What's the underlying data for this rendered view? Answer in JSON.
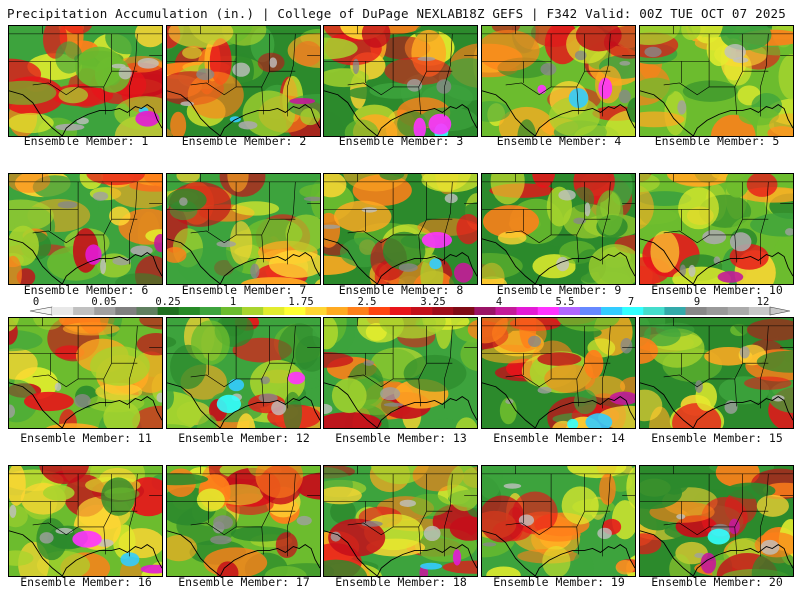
{
  "header": {
    "title_left": "Precipitation Accumulation (in.) | College of DuPage NEXLAB",
    "title_right": "18Z GEFS | F342 Valid: 00Z TUE OCT 07 2025"
  },
  "colorbar": {
    "tick_labels": [
      "0",
      "0.05",
      "0.25",
      "1",
      "1.75",
      "2.5",
      "3.25",
      "4",
      "5.5",
      "7",
      "9",
      "12"
    ],
    "colors": [
      "#e8e8e8",
      "#c0c0c0",
      "#a0a0a0",
      "#7f7f7f",
      "#5f7f5f",
      "#1f6f1f",
      "#268a26",
      "#3da33d",
      "#6cbc2e",
      "#a8d42e",
      "#e2ec2e",
      "#ffff33",
      "#ffd633",
      "#ffaa22",
      "#ff7f1a",
      "#ff4411",
      "#e8141a",
      "#c40f1a",
      "#a00d1a",
      "#7f0b16",
      "#9a1466",
      "#c41a99",
      "#e31ad6",
      "#ff33ff",
      "#b166ff",
      "#6688ff",
      "#33ccff",
      "#33ffff",
      "#44ddcc",
      "#33aaaa",
      "#888888",
      "#999999",
      "#aaaaaa",
      "#c8c8c8"
    ]
  },
  "panels": [
    {
      "label": "Ensemble Member: 1"
    },
    {
      "label": "Ensemble Member: 2"
    },
    {
      "label": "Ensemble Member: 3"
    },
    {
      "label": "Ensemble Member: 4"
    },
    {
      "label": "Ensemble Member: 5"
    },
    {
      "label": "Ensemble Member: 6"
    },
    {
      "label": "Ensemble Member: 7"
    },
    {
      "label": "Ensemble Member: 8"
    },
    {
      "label": "Ensemble Member: 9"
    },
    {
      "label": "Ensemble Member: 10"
    },
    {
      "label": "Ensemble Member: 11"
    },
    {
      "label": "Ensemble Member: 12"
    },
    {
      "label": "Ensemble Member: 13"
    },
    {
      "label": "Ensemble Member: 14"
    },
    {
      "label": "Ensemble Member: 15"
    },
    {
      "label": "Ensemble Member: 16"
    },
    {
      "label": "Ensemble Member: 17"
    },
    {
      "label": "Ensemble Member: 18"
    },
    {
      "label": "Ensemble Member: 19"
    },
    {
      "label": "Ensemble Member: 20"
    }
  ]
}
